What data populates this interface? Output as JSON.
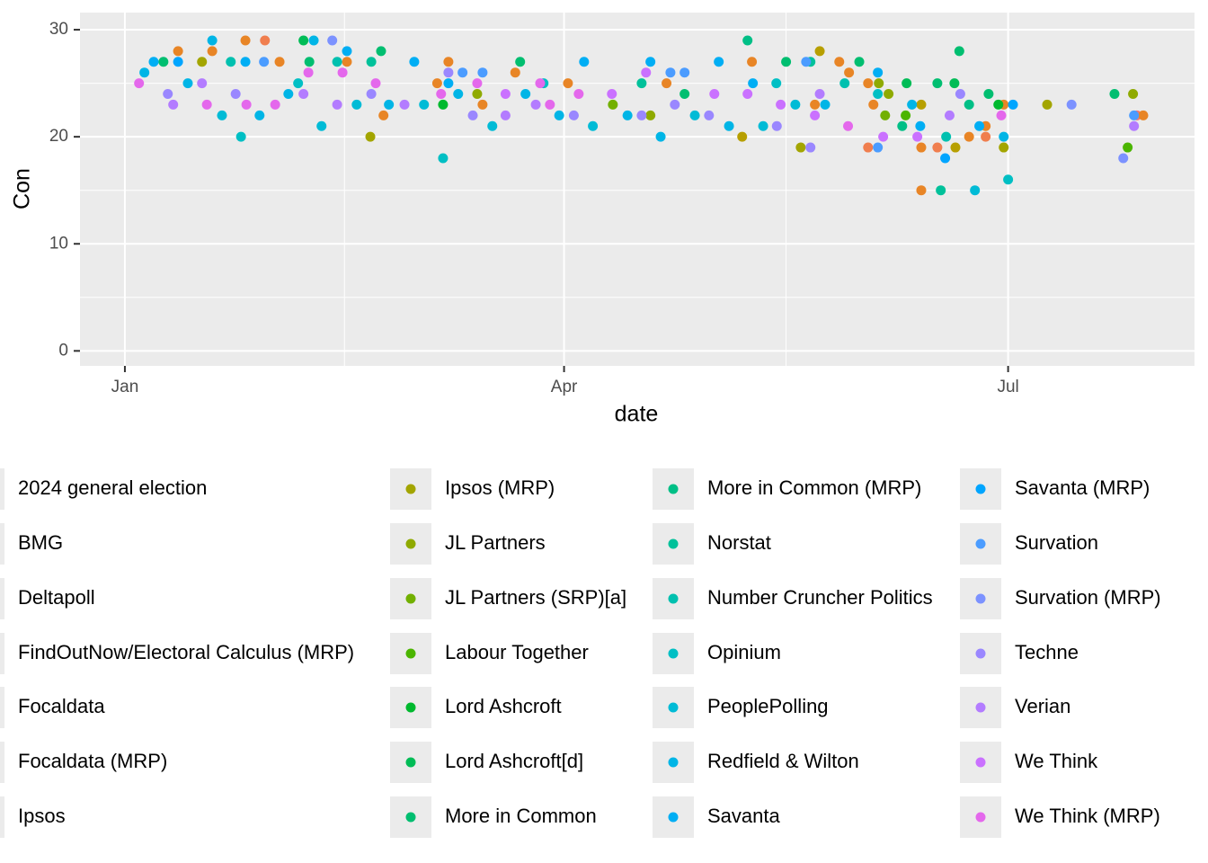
{
  "chart_data": {
    "type": "scatter",
    "x_label": "date",
    "y_label": "Con",
    "xlim": [
      -9.2,
      219.2
    ],
    "ylim": [
      -1.4,
      31.6
    ],
    "xticks": [
      {
        "value": 0,
        "label": "Jan"
      },
      {
        "value": 90,
        "label": "Apr"
      },
      {
        "value": 181,
        "label": "Jul"
      }
    ],
    "yticks": [
      0,
      10,
      20,
      30
    ],
    "grid": true,
    "legend": "bottom",
    "series": [
      {
        "name": "2024 general election",
        "color": "#F8766D",
        "x": [
          207.4
        ],
        "values": [
          22
        ]
      },
      {
        "name": "BMG",
        "color": "#F07E4E",
        "x": [
          28.7,
          152.3,
          166.5,
          176.4
        ],
        "values": [
          29,
          19,
          19,
          20
        ]
      },
      {
        "name": "Deltapoll",
        "color": "#E88526",
        "x": [
          10.9,
          17.9,
          24.7,
          31.7,
          45.5,
          53,
          64,
          66.3,
          73.3,
          80,
          90.8,
          111,
          128.5,
          141.4,
          146.4,
          148.4,
          152.3,
          153.4,
          163.2,
          163.2,
          173,
          176.4,
          180.1,
          208.7
        ],
        "values": [
          28,
          28,
          29,
          27,
          27,
          22,
          25,
          27,
          23,
          26,
          25,
          25,
          27,
          23,
          27,
          26,
          25,
          23,
          15,
          19,
          20,
          21,
          23,
          22
        ]
      },
      {
        "name": "FindOutNow/Electoral Calculus (MRP)",
        "color": "#DE8C00",
        "x": [],
        "values": []
      },
      {
        "name": "Focaldata",
        "color": "#D39200",
        "x": [],
        "values": []
      },
      {
        "name": "Focaldata (MRP)",
        "color": "#C79800",
        "x": [],
        "values": []
      },
      {
        "name": "Ipsos",
        "color": "#B79F00",
        "x": [
          126.5,
          142.4,
          170.2,
          163.2
        ],
        "values": [
          20,
          28,
          19,
          23
        ]
      },
      {
        "name": "Ipsos (MRP)",
        "color": "#A3A500",
        "x": [
          189,
          15.8,
          50.3,
          138.5,
          180.1
        ],
        "values": [
          23,
          27,
          20,
          19,
          19
        ]
      },
      {
        "name": "JL Partners",
        "color": "#8FAA00",
        "x": [
          72.2,
          107.7,
          206.6,
          154.5,
          156.5
        ],
        "values": [
          24,
          22,
          24,
          25,
          24
        ]
      },
      {
        "name": "JL Partners (SRP)[a]",
        "color": "#72B000",
        "x": [
          100,
          155.8
        ],
        "values": [
          23,
          22
        ]
      },
      {
        "name": "Labour Together",
        "color": "#4BB500",
        "x": [
          205.5,
          160
        ],
        "values": [
          19,
          22
        ]
      },
      {
        "name": "Lord Ashcroft",
        "color": "#00B92E",
        "x": [
          65.2,
          179
        ],
        "values": [
          23,
          23
        ]
      },
      {
        "name": "Lord Ashcroft[d]",
        "color": "#00BC56",
        "x": [
          36.6,
          160.2,
          170
        ],
        "values": [
          29,
          25,
          25
        ]
      },
      {
        "name": "More in Common",
        "color": "#00BE70",
        "x": [
          7.9,
          37.8,
          52.5,
          81,
          114.7,
          135.5,
          150.5,
          166.5,
          171,
          177,
          202.8
        ],
        "values": [
          27,
          27,
          28,
          27,
          24,
          27,
          27,
          25,
          28,
          24,
          24
        ]
      },
      {
        "name": "More in Common (MRP)",
        "color": "#00BF86",
        "x": [
          127.6,
          159.3,
          173
        ],
        "values": [
          29,
          21,
          23
        ]
      },
      {
        "name": "Norstat",
        "color": "#00C19A",
        "x": [
          50.5,
          105.9,
          140.5,
          167.2
        ],
        "values": [
          27,
          25,
          27,
          15
        ]
      },
      {
        "name": "Number Cruncher Politics",
        "color": "#00C0AF",
        "x": [
          21.7,
          43.5,
          147.5,
          168.3
        ],
        "values": [
          27,
          27,
          25,
          20
        ]
      },
      {
        "name": "Opinium",
        "color": "#00BFC4",
        "x": [
          23.8,
          35.5,
          65.2,
          85.8,
          133.5,
          154.3,
          181
        ],
        "values": [
          20,
          25,
          18,
          25,
          25,
          24,
          16
        ]
      },
      {
        "name": "PeoplePolling",
        "color": "#00BBD6",
        "x": [
          19.9,
          40.3,
          47.5,
          61.3,
          75.3,
          95.9,
          116.8,
          130.8,
          137.4,
          174.2
        ],
        "values": [
          22,
          21,
          23,
          23,
          21,
          21,
          22,
          21,
          23,
          15
        ]
      },
      {
        "name": "Redfield & Wilton",
        "color": "#00B5E6",
        "x": [
          4,
          12.9,
          17.9,
          27.6,
          33.5,
          38.7,
          54.1,
          68.3,
          82.1,
          89,
          103,
          109.8,
          123.8,
          143.5,
          161.3,
          180.1
        ],
        "values": [
          26,
          25,
          29,
          22,
          24,
          29,
          23,
          24,
          24,
          22,
          22,
          20,
          21,
          23,
          23,
          20
        ]
      },
      {
        "name": "Savanta",
        "color": "#00AEF4",
        "x": [
          5.9,
          24.7,
          45.5,
          59.3,
          66.3,
          94.1,
          107.7,
          121.7,
          128.7,
          154.3,
          163,
          175.1
        ],
        "values": [
          27,
          27,
          28,
          27,
          25,
          27,
          27,
          27,
          25,
          26,
          21,
          21
        ]
      },
      {
        "name": "Savanta (MRP)",
        "color": "#00A5FF",
        "x": [
          10.9,
          168.1,
          182
        ],
        "values": [
          27,
          18,
          23
        ]
      },
      {
        "name": "Survation",
        "color": "#4B9CFF",
        "x": [
          28.5,
          69.2,
          73.3,
          111.8,
          114.7,
          139.6,
          154.3,
          206.8
        ],
        "values": [
          27,
          26,
          26,
          26,
          26,
          27,
          19,
          22
        ]
      },
      {
        "name": "Survation (MRP)",
        "color": "#7C92FF",
        "x": [
          42.5,
          194,
          204.6
        ],
        "values": [
          29,
          23,
          18
        ]
      },
      {
        "name": "Techne",
        "color": "#9A87FF",
        "x": [
          8.8,
          22.7,
          50.5,
          66.3,
          71.3,
          92,
          105.9,
          112.7,
          119.7,
          133.6,
          140.5,
          171.2
        ],
        "values": [
          24,
          24,
          24,
          26,
          22,
          22,
          22,
          23,
          22,
          21,
          19,
          24
        ]
      },
      {
        "name": "Verian",
        "color": "#B37CFF",
        "x": [
          9.9,
          15.8,
          36.6,
          43.5,
          57.3,
          78,
          84.2,
          142.4,
          169,
          206.8
        ],
        "values": [
          23,
          25,
          24,
          23,
          23,
          22,
          23,
          24,
          22,
          21
        ]
      },
      {
        "name": "We Think",
        "color": "#CA71FF",
        "x": [
          78,
          99.8,
          106.8,
          120.8,
          127.6,
          134.4,
          141.4,
          155.4,
          162.4
        ],
        "values": [
          24,
          24,
          26,
          24,
          24,
          23,
          22,
          20,
          20
        ]
      },
      {
        "name": "We Think (MRP)",
        "color": "#E468EC",
        "x": [
          2.9,
          16.8,
          24.9,
          30.8,
          37.6,
          44.6,
          51.4,
          64.8,
          72.2,
          85.1,
          87.1,
          93,
          148.2,
          179.6
        ],
        "values": [
          25,
          23,
          23,
          23,
          26,
          26,
          25,
          24,
          25,
          25,
          23,
          24,
          21,
          22
        ]
      }
    ]
  }
}
